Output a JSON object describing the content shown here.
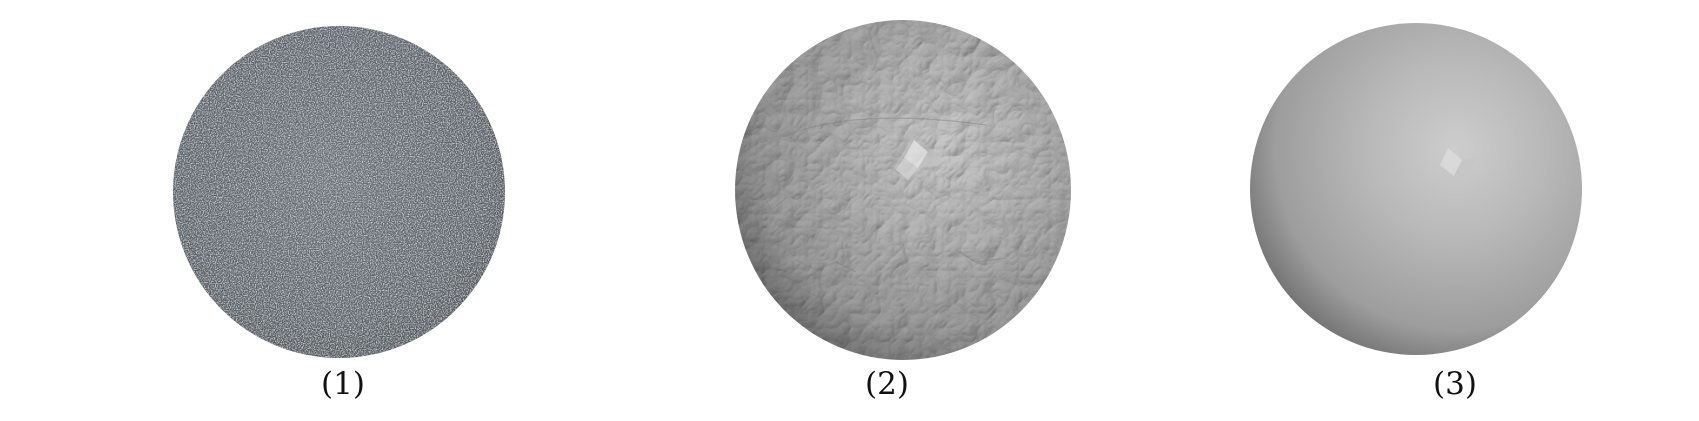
{
  "panels": [
    {
      "label": "(1)",
      "render_style": "dense point cloud"
    },
    {
      "label": "(2)",
      "render_style": "coarse reconstructed mesh"
    },
    {
      "label": "(3)",
      "render_style": "smooth reconstructed mesh"
    }
  ],
  "colors": {
    "background": "#ffffff",
    "point_cloud_base": "#5a6066",
    "point_cloud_light": "#9aa1a6",
    "point_cloud_dark": "#2e3236",
    "mesh_highlight": "#cfcfcf",
    "mesh_mid": "#9e9e9e",
    "mesh_shadow": "#3a3a3a"
  }
}
